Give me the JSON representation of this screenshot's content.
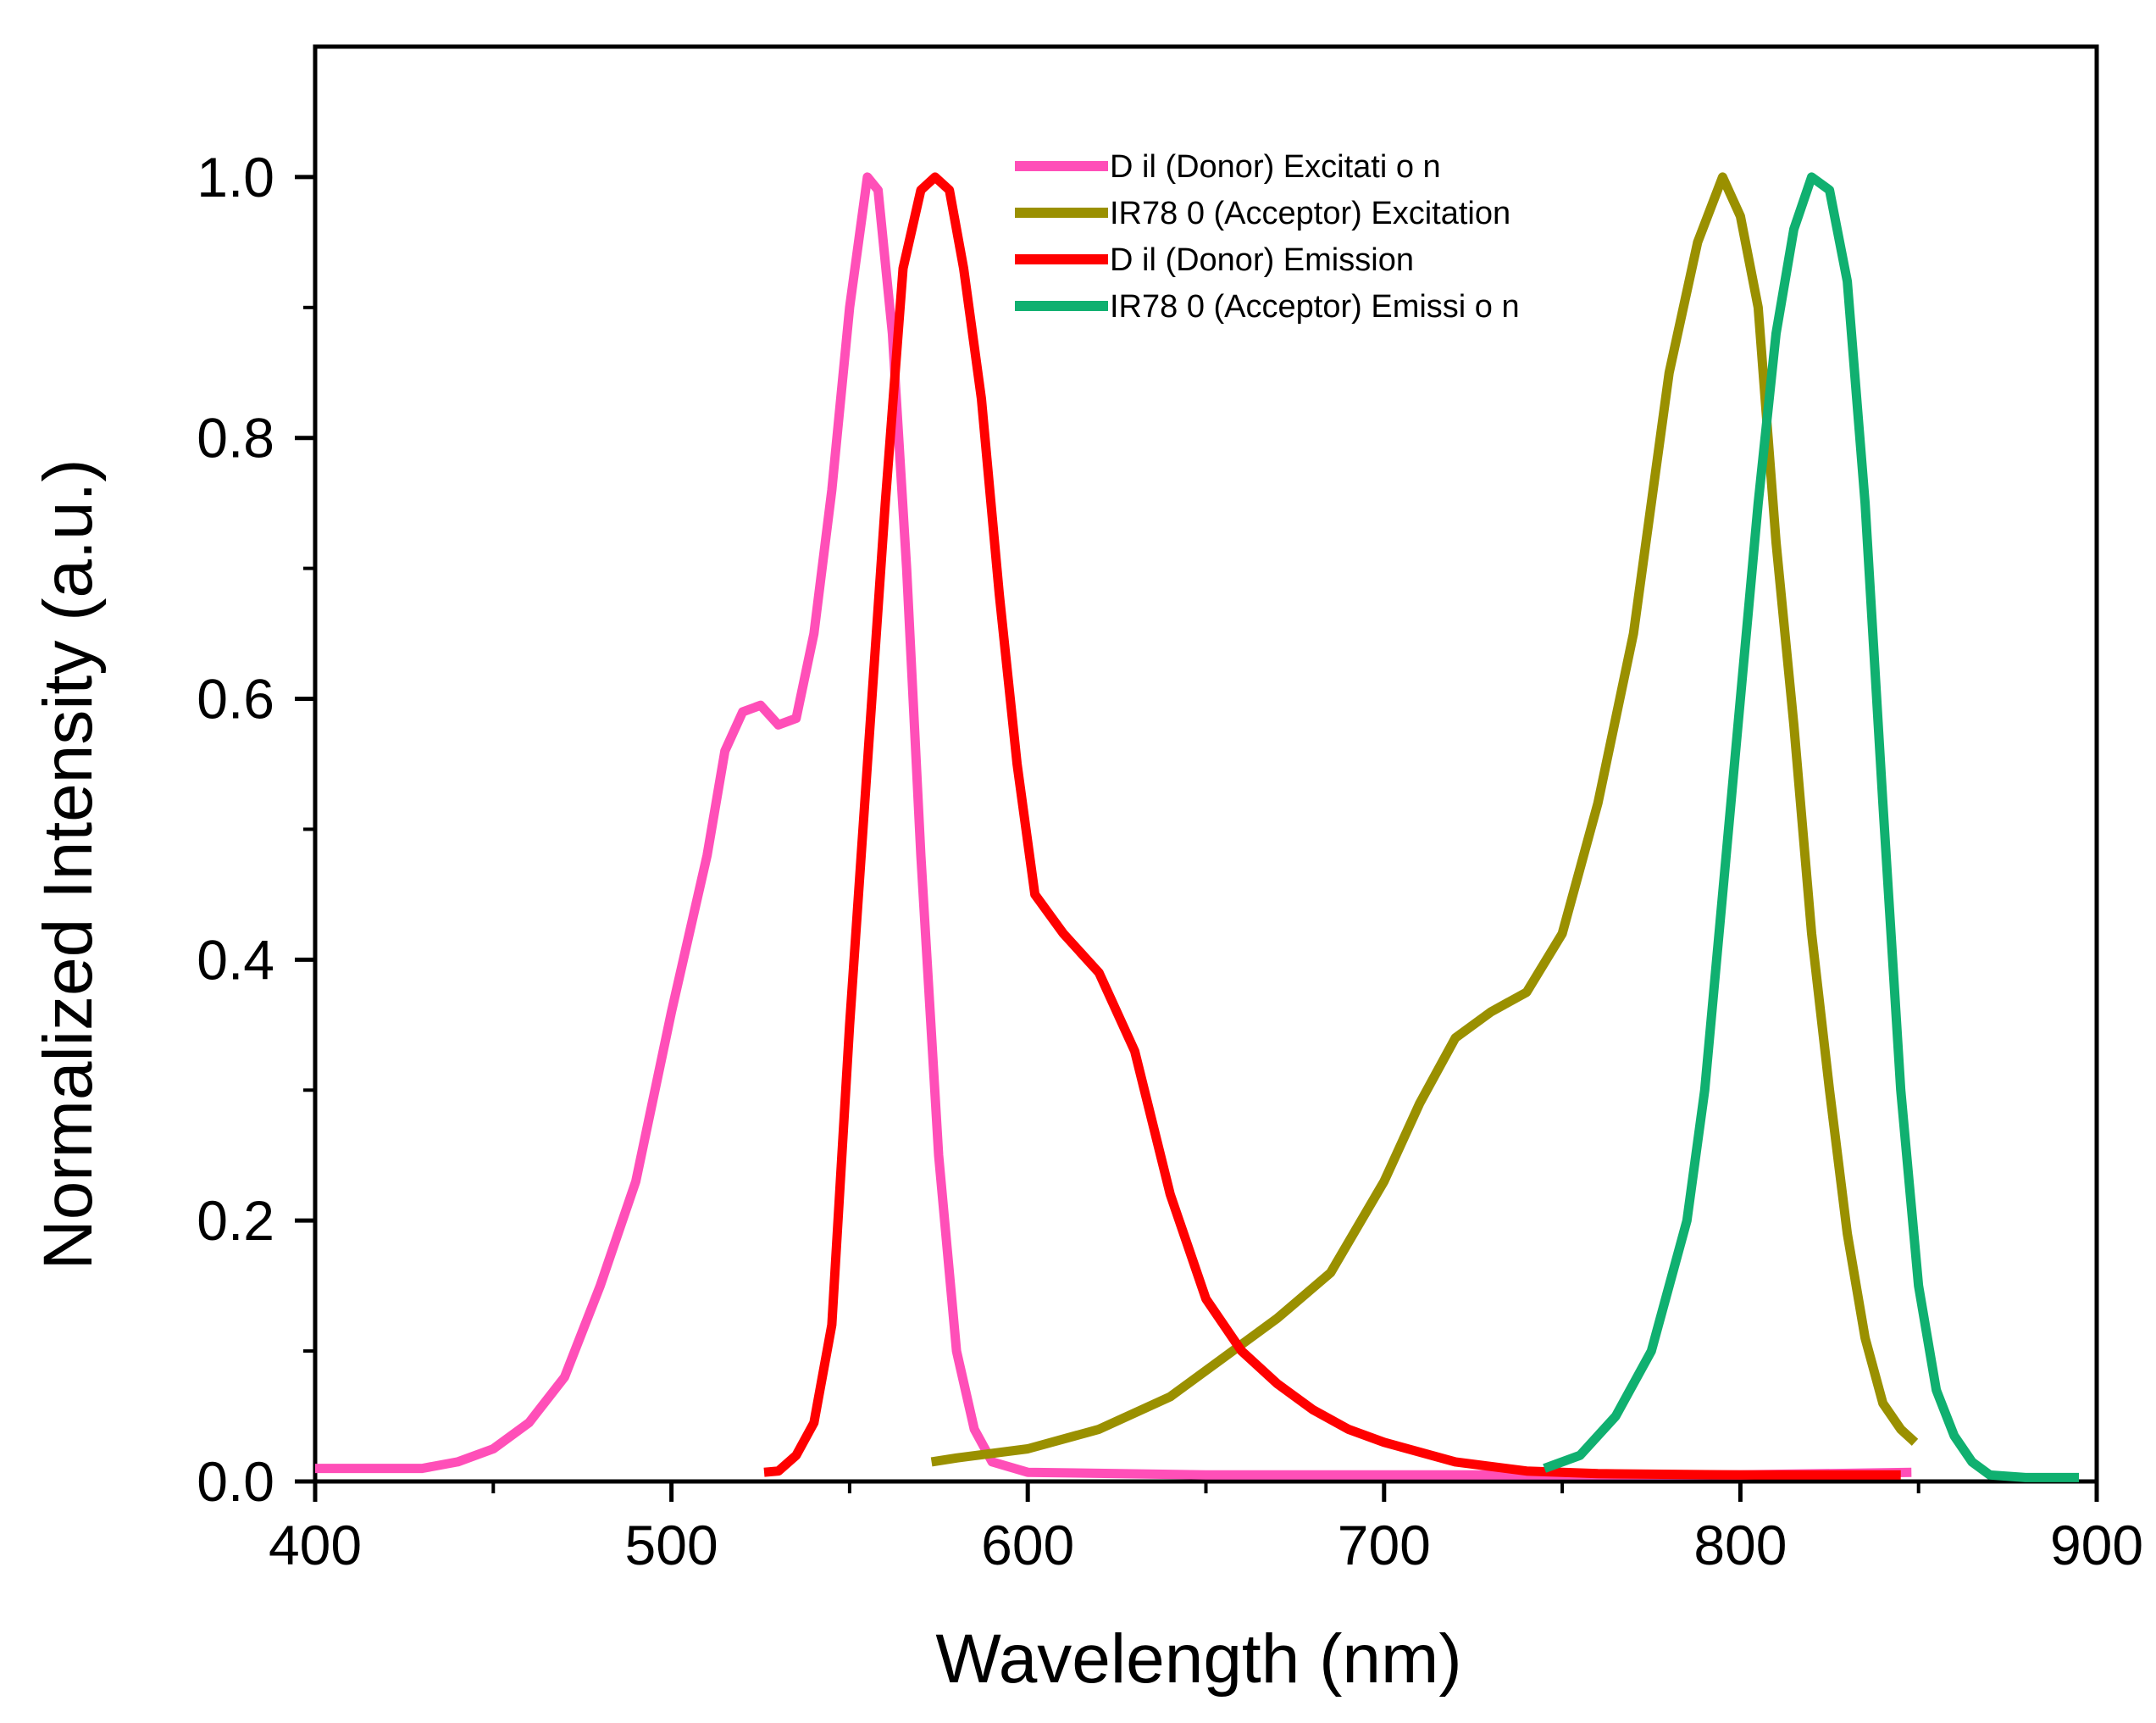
{
  "chart_data": {
    "type": "line",
    "title": "",
    "xlabel": "Wavelength (nm)",
    "ylabel": "Normalized Intensity (a.u.)",
    "xlim": [
      400,
      900
    ],
    "ylim": [
      0.0,
      1.1
    ],
    "x_ticks": [
      400,
      500,
      600,
      700,
      800,
      900
    ],
    "x_tick_labels": [
      "400",
      "500",
      "600",
      "700",
      "800",
      "900"
    ],
    "y_ticks": [
      0.0,
      0.2,
      0.4,
      0.6,
      0.8,
      1.0
    ],
    "y_tick_labels": [
      "0.0",
      "0.2",
      "0.4",
      "0.6",
      "0.8",
      "1.0"
    ],
    "legend_position": "top-center",
    "grid": false,
    "series": [
      {
        "name": "Dil (Donor) Excitation",
        "label": "D il (Donor) Excitati o n",
        "color": "#ff4fb8",
        "points": [
          [
            400,
            0.01
          ],
          [
            430,
            0.01
          ],
          [
            440,
            0.015
          ],
          [
            450,
            0.025
          ],
          [
            460,
            0.045
          ],
          [
            470,
            0.08
          ],
          [
            480,
            0.15
          ],
          [
            490,
            0.23
          ],
          [
            500,
            0.36
          ],
          [
            510,
            0.48
          ],
          [
            515,
            0.56
          ],
          [
            520,
            0.59
          ],
          [
            525,
            0.595
          ],
          [
            530,
            0.58
          ],
          [
            535,
            0.585
          ],
          [
            540,
            0.65
          ],
          [
            545,
            0.76
          ],
          [
            550,
            0.9
          ],
          [
            555,
            1.0
          ],
          [
            558,
            0.99
          ],
          [
            562,
            0.88
          ],
          [
            566,
            0.7
          ],
          [
            570,
            0.48
          ],
          [
            575,
            0.25
          ],
          [
            580,
            0.1
          ],
          [
            585,
            0.04
          ],
          [
            590,
            0.015
          ],
          [
            600,
            0.007
          ],
          [
            650,
            0.005
          ],
          [
            700,
            0.005
          ],
          [
            800,
            0.005
          ],
          [
            848,
            0.007
          ]
        ]
      },
      {
        "name": "IR780 (Acceptor) Excitation",
        "label": "IR78 0 (Acceptor) Excitation",
        "color": "#9a9000",
        "points": [
          [
            573,
            0.015
          ],
          [
            580,
            0.018
          ],
          [
            600,
            0.025
          ],
          [
            620,
            0.04
          ],
          [
            640,
            0.065
          ],
          [
            655,
            0.095
          ],
          [
            670,
            0.125
          ],
          [
            685,
            0.16
          ],
          [
            700,
            0.23
          ],
          [
            710,
            0.29
          ],
          [
            720,
            0.34
          ],
          [
            730,
            0.36
          ],
          [
            740,
            0.375
          ],
          [
            750,
            0.42
          ],
          [
            760,
            0.52
          ],
          [
            770,
            0.65
          ],
          [
            780,
            0.85
          ],
          [
            788,
            0.95
          ],
          [
            795,
            1.0
          ],
          [
            800,
            0.97
          ],
          [
            805,
            0.9
          ],
          [
            810,
            0.72
          ],
          [
            815,
            0.58
          ],
          [
            820,
            0.42
          ],
          [
            825,
            0.3
          ],
          [
            830,
            0.19
          ],
          [
            835,
            0.11
          ],
          [
            840,
            0.06
          ],
          [
            845,
            0.04
          ],
          [
            849,
            0.03
          ]
        ]
      },
      {
        "name": "Dil (Donor) Emission",
        "label": "D il (Donor) Emission",
        "color": "#ff0000",
        "points": [
          [
            526,
            0.007
          ],
          [
            530,
            0.008
          ],
          [
            535,
            0.02
          ],
          [
            540,
            0.045
          ],
          [
            545,
            0.12
          ],
          [
            550,
            0.35
          ],
          [
            555,
            0.55
          ],
          [
            560,
            0.75
          ],
          [
            565,
            0.93
          ],
          [
            570,
            0.99
          ],
          [
            574,
            1.0
          ],
          [
            578,
            0.99
          ],
          [
            582,
            0.93
          ],
          [
            587,
            0.83
          ],
          [
            592,
            0.68
          ],
          [
            597,
            0.55
          ],
          [
            602,
            0.45
          ],
          [
            610,
            0.42
          ],
          [
            620,
            0.39
          ],
          [
            630,
            0.33
          ],
          [
            640,
            0.22
          ],
          [
            650,
            0.14
          ],
          [
            660,
            0.1
          ],
          [
            670,
            0.075
          ],
          [
            680,
            0.055
          ],
          [
            690,
            0.04
          ],
          [
            700,
            0.03
          ],
          [
            720,
            0.015
          ],
          [
            740,
            0.008
          ],
          [
            760,
            0.006
          ],
          [
            800,
            0.005
          ],
          [
            845,
            0.005
          ]
        ]
      },
      {
        "name": "IR780 (Acceptor) Emission",
        "label": "IR78 0 (Acceptor) Emissi o n",
        "color": "#10b070",
        "points": [
          [
            745,
            0.01
          ],
          [
            755,
            0.02
          ],
          [
            765,
            0.05
          ],
          [
            775,
            0.1
          ],
          [
            785,
            0.2
          ],
          [
            790,
            0.3
          ],
          [
            795,
            0.45
          ],
          [
            800,
            0.6
          ],
          [
            805,
            0.75
          ],
          [
            810,
            0.88
          ],
          [
            815,
            0.96
          ],
          [
            820,
            1.0
          ],
          [
            825,
            0.99
          ],
          [
            830,
            0.92
          ],
          [
            835,
            0.75
          ],
          [
            840,
            0.52
          ],
          [
            845,
            0.3
          ],
          [
            850,
            0.15
          ],
          [
            855,
            0.07
          ],
          [
            860,
            0.035
          ],
          [
            865,
            0.015
          ],
          [
            870,
            0.005
          ],
          [
            880,
            0.003
          ],
          [
            895,
            0.003
          ]
        ]
      }
    ]
  }
}
